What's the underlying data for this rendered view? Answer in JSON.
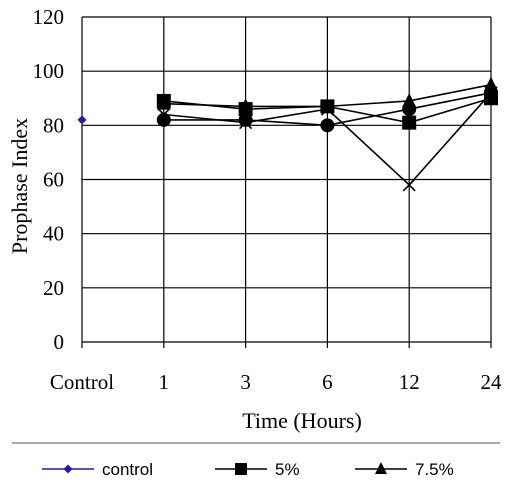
{
  "chart_data": {
    "type": "line",
    "xlabel": "Time (Hours)",
    "ylabel": "Prophase Index",
    "categories": [
      "Control",
      "1",
      "3",
      "6",
      "12",
      "24"
    ],
    "ylim": [
      0,
      120
    ],
    "yticks": [
      0,
      20,
      40,
      60,
      80,
      100,
      120
    ],
    "grid": true,
    "legend_position": "bottom",
    "series": [
      {
        "name": "control",
        "marker": "diamond",
        "color": "#1f1fa0",
        "values": [
          82,
          null,
          null,
          null,
          null,
          null
        ]
      },
      {
        "name": "5%",
        "marker": "square",
        "color": "#000000",
        "values": [
          null,
          89,
          86,
          87,
          81,
          90
        ]
      },
      {
        "name": "7.5%",
        "marker": "triangle",
        "color": "#000000",
        "values": [
          null,
          88,
          87,
          87,
          89,
          95
        ]
      },
      {
        "name": "",
        "marker": "x",
        "color": "#000000",
        "values": [
          null,
          84,
          81,
          86,
          58,
          92
        ]
      },
      {
        "name": "",
        "marker": "circle",
        "color": "#000000",
        "values": [
          null,
          82,
          82,
          80,
          86,
          92
        ]
      }
    ]
  }
}
